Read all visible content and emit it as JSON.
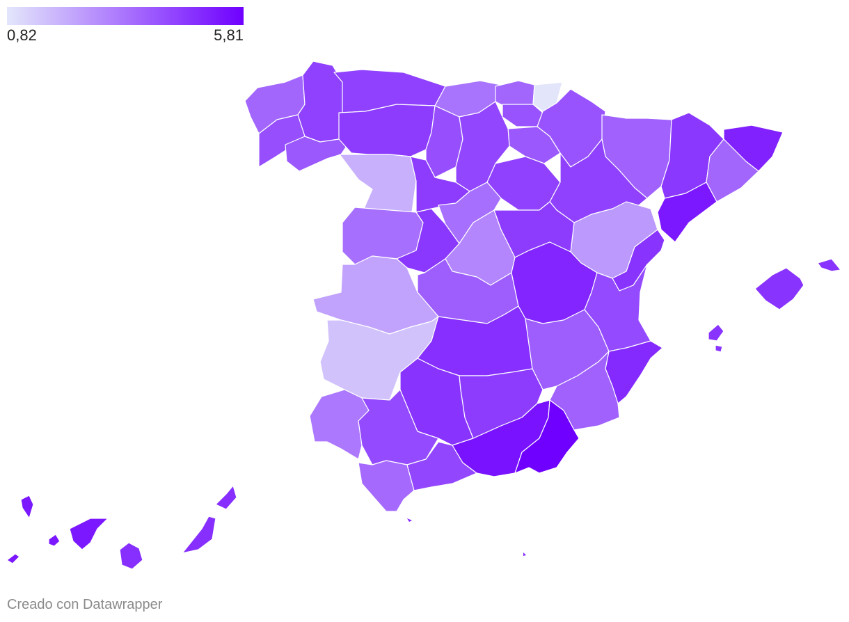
{
  "legend": {
    "min_label": "0,82",
    "max_label": "5,81",
    "min_value": 0.82,
    "max_value": 5.81,
    "color_min": "#e3e6fb",
    "color_max": "#6f00ff"
  },
  "footer": {
    "credit": "Creado con Datawrapper"
  },
  "map": {
    "type": "choropleth",
    "region": "Spain provinces",
    "border_color": "#ffffff",
    "regions": [
      {
        "name": "A Coruña",
        "value": 3.6
      },
      {
        "name": "Lugo",
        "value": 4.4
      },
      {
        "name": "Pontevedra",
        "value": 4.1
      },
      {
        "name": "Ourense",
        "value": 3.9
      },
      {
        "name": "Asturias",
        "value": 4.4
      },
      {
        "name": "Cantabria",
        "value": 3.3
      },
      {
        "name": "Bizkaia",
        "value": 3.6
      },
      {
        "name": "Gipuzkoa",
        "value": 0.82
      },
      {
        "name": "Álava",
        "value": 4.0
      },
      {
        "name": "Navarra",
        "value": 4.0
      },
      {
        "name": "La Rioja",
        "value": 3.9
      },
      {
        "name": "León",
        "value": 4.5
      },
      {
        "name": "Palencia",
        "value": 4.1
      },
      {
        "name": "Burgos",
        "value": 4.3
      },
      {
        "name": "Zamora",
        "value": 2.0
      },
      {
        "name": "Valladolid",
        "value": 4.5
      },
      {
        "name": "Soria",
        "value": 4.4
      },
      {
        "name": "Salamanca",
        "value": 3.4
      },
      {
        "name": "Ávila",
        "value": 4.6
      },
      {
        "name": "Segovia",
        "value": 3.4
      },
      {
        "name": "Huesca",
        "value": 3.7
      },
      {
        "name": "Zaragoza",
        "value": 4.4
      },
      {
        "name": "Teruel",
        "value": 2.5
      },
      {
        "name": "Lleida",
        "value": 4.6
      },
      {
        "name": "Girona",
        "value": 5.1
      },
      {
        "name": "Barcelona",
        "value": 3.6
      },
      {
        "name": "Tarragona",
        "value": 5.3
      },
      {
        "name": "Madrid",
        "value": 2.9
      },
      {
        "name": "Guadalajara",
        "value": 4.5
      },
      {
        "name": "Cáceres",
        "value": 2.3
      },
      {
        "name": "Badajoz",
        "value": 1.6
      },
      {
        "name": "Toledo",
        "value": 3.8
      },
      {
        "name": "Cuenca",
        "value": 5.0
      },
      {
        "name": "Ciudad Real",
        "value": 4.8
      },
      {
        "name": "Albacete",
        "value": 3.8
      },
      {
        "name": "Castellón",
        "value": 4.7
      },
      {
        "name": "Valencia",
        "value": 4.2
      },
      {
        "name": "Alicante",
        "value": 4.9
      },
      {
        "name": "Murcia",
        "value": 3.7
      },
      {
        "name": "Huelva",
        "value": 3.2
      },
      {
        "name": "Sevilla",
        "value": 4.2
      },
      {
        "name": "Córdoba",
        "value": 4.7
      },
      {
        "name": "Jaén",
        "value": 4.5
      },
      {
        "name": "Cádiz",
        "value": 3.5
      },
      {
        "name": "Málaga",
        "value": 4.3
      },
      {
        "name": "Granada",
        "value": 5.4
      },
      {
        "name": "Almería",
        "value": 5.81
      },
      {
        "name": "Illes Balears",
        "value": 4.7
      },
      {
        "name": "Santa Cruz de Tenerife",
        "value": 5.3
      },
      {
        "name": "Las Palmas",
        "value": 4.8
      }
    ]
  }
}
